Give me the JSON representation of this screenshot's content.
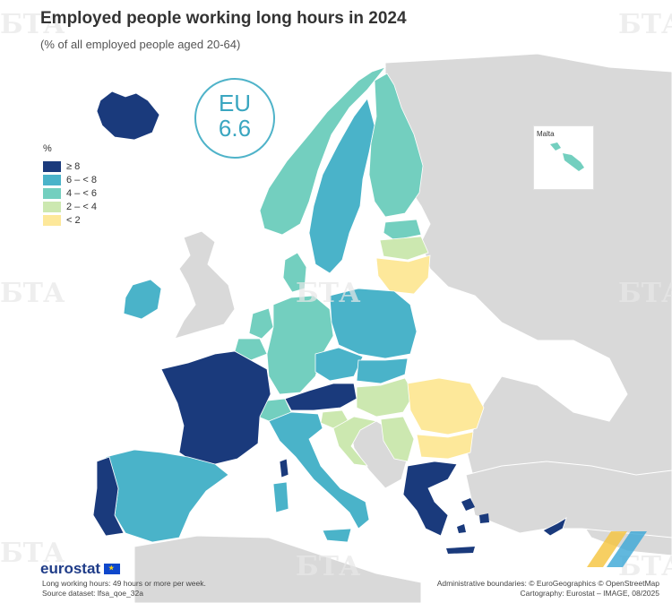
{
  "title": "Employed people working long hours in 2024",
  "subtitle": "(% of all employed people aged 20-64)",
  "eu": {
    "label": "EU",
    "value": "6.6"
  },
  "legend": {
    "title": "%",
    "items": [
      {
        "label": "≥ 8",
        "color": "#1a3a7c"
      },
      {
        "label": "6 – < 8",
        "color": "#4ab3c9"
      },
      {
        "label": "4 – < 6",
        "color": "#73cfbf"
      },
      {
        "label": "2 – < 4",
        "color": "#cce8b0"
      },
      {
        "label": "< 2",
        "color": "#fde89a"
      }
    ]
  },
  "inset": {
    "label": "Malta",
    "class": "4 – < 6"
  },
  "countries": [
    {
      "name": "Iceland",
      "class": "≥ 8"
    },
    {
      "name": "France",
      "class": "≥ 8"
    },
    {
      "name": "Portugal",
      "class": "≥ 8"
    },
    {
      "name": "Greece",
      "class": "≥ 8"
    },
    {
      "name": "Cyprus",
      "class": "≥ 8"
    },
    {
      "name": "Austria",
      "class": "≥ 8"
    },
    {
      "name": "Sweden",
      "class": "6 – < 8"
    },
    {
      "name": "Spain",
      "class": "6 – < 8"
    },
    {
      "name": "Italy",
      "class": "6 – < 8"
    },
    {
      "name": "Ireland",
      "class": "6 – < 8"
    },
    {
      "name": "Poland",
      "class": "6 – < 8"
    },
    {
      "name": "Czechia",
      "class": "6 – < 8"
    },
    {
      "name": "Slovakia",
      "class": "6 – < 8"
    },
    {
      "name": "Norway",
      "class": "4 – < 6"
    },
    {
      "name": "Finland",
      "class": "4 – < 6"
    },
    {
      "name": "Estonia",
      "class": "4 – < 6"
    },
    {
      "name": "Denmark",
      "class": "4 – < 6"
    },
    {
      "name": "Germany",
      "class": "4 – < 6"
    },
    {
      "name": "Netherlands",
      "class": "4 – < 6"
    },
    {
      "name": "Belgium",
      "class": "4 – < 6"
    },
    {
      "name": "Switzerland",
      "class": "4 – < 6"
    },
    {
      "name": "Malta",
      "class": "4 – < 6"
    },
    {
      "name": "Latvia",
      "class": "2 – < 4"
    },
    {
      "name": "Hungary",
      "class": "2 – < 4"
    },
    {
      "name": "Slovenia",
      "class": "2 – < 4"
    },
    {
      "name": "Croatia",
      "class": "2 – < 4"
    },
    {
      "name": "Serbia",
      "class": "2 – < 4"
    },
    {
      "name": "Lithuania",
      "class": "< 2"
    },
    {
      "name": "Romania",
      "class": "< 2"
    },
    {
      "name": "Bulgaria",
      "class": "< 2"
    }
  ],
  "colors": {
    "no_data_land": "#d9d9d9",
    "sea": "#ffffff",
    "border": "#ffffff"
  },
  "logo": "eurostat",
  "footer_left": [
    "Long working hours: 49 hours or more per week.",
    "Source dataset: lfsa_qoe_32a"
  ],
  "footer_right": [
    "Administrative boundaries: © EuroGeographics © OpenStreetMap",
    "Cartography: Eurostat – IMAGE, 08/2025"
  ],
  "watermark": "БТА"
}
